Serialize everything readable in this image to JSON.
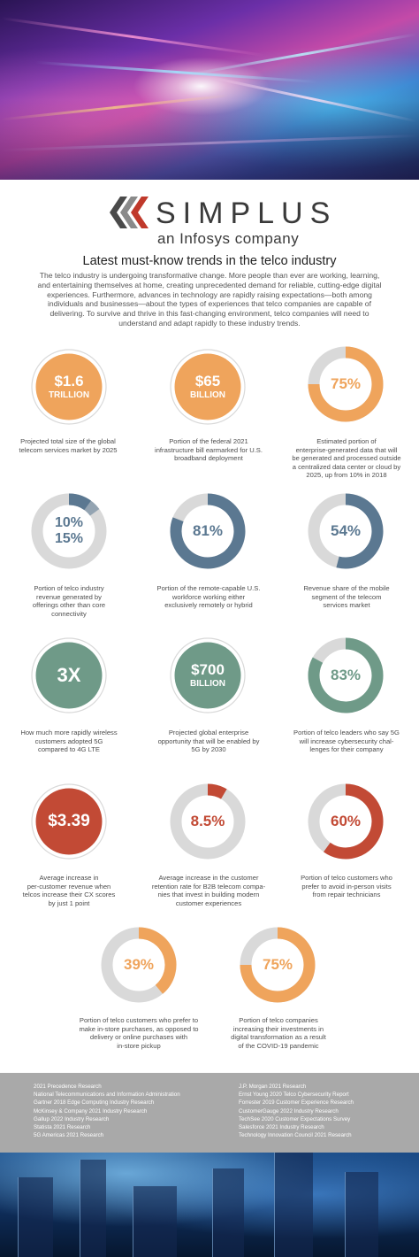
{
  "brand": {
    "name": "SIMPLUS",
    "tagline": "an Infosys company",
    "colors": {
      "dark": "#4a4a4a",
      "red": "#c0392b",
      "gray": "#8a8a8a"
    }
  },
  "headline": "Latest must-know trends in the telco industry",
  "intro": "The telco industry is undergoing transformative change. More people than ever are working, learning, and entertaining themselves at home, creating unprecedented demand for reliable, cutting-edge digital experiences. Furthermore, advances in technology are rapidly raising expectations—both among individuals and businesses—about the types of experiences that telco companies are capable of delivering. To survive and thrive in this fast-changing environment, telco companies will need to understand and adapt rapidly to these industry trends.",
  "colors": {
    "orange": "#efa45c",
    "slate": "#5b7891",
    "green": "#6f9a88",
    "red": "#c24a35",
    "ring_track": "#d9d9d9"
  },
  "stats": [
    {
      "id": "s1",
      "style": "solid",
      "color": "orange",
      "value": 1.0,
      "line1": "$1.6",
      "line2": "TRILLION",
      "caption": [
        "Projected total size of the global",
        "telecom services market by 2025"
      ]
    },
    {
      "id": "s2",
      "style": "solid",
      "color": "orange",
      "value": 1.0,
      "line1": "$65",
      "line2": "BILLION",
      "caption": [
        "Portion of the federal 2021",
        "infrastructure bill earmarked for U.S.",
        "broadband deployment"
      ]
    },
    {
      "id": "s3",
      "style": "ring",
      "color": "orange",
      "value": 0.75,
      "line1": "75%",
      "line2": "",
      "caption": [
        "Estimated portion of",
        "enterprise-generated data that will",
        "be generated and processed outside",
        "a centralized data center or cloud by",
        "2025, up from 10% in 2018"
      ]
    },
    {
      "id": "s4",
      "style": "ring",
      "color": "slate",
      "value": 0.1,
      "value2": 0.15,
      "line1": "10%",
      "line2": "15%",
      "caption": [
        "Portion of telco industry",
        "revenue generated by",
        "offerings other than core",
        "connectivity"
      ]
    },
    {
      "id": "s5",
      "style": "ring",
      "color": "slate",
      "value": 0.81,
      "line1": "81%",
      "line2": "",
      "caption": [
        "Portion of the remote-capable U.S.",
        "workforce working either",
        "exclusively remotely or hybrid"
      ]
    },
    {
      "id": "s6",
      "style": "ring",
      "color": "slate",
      "value": 0.54,
      "line1": "54%",
      "line2": "",
      "caption": [
        "Revenue share of the mobile",
        "segment of the telecom",
        "services market"
      ]
    },
    {
      "id": "s7",
      "style": "solid",
      "color": "green",
      "value": 1.0,
      "line1": "3X",
      "line2": "",
      "caption": [
        "How much more rapidly wireless",
        "customers adopted 5G",
        "compared to 4G LTE"
      ]
    },
    {
      "id": "s8",
      "style": "solid",
      "color": "green",
      "value": 1.0,
      "line1": "$700",
      "line2": "BILLION",
      "caption": [
        "Projected global enterprise",
        "opportunity that will be enabled by",
        "5G by 2030"
      ]
    },
    {
      "id": "s9",
      "style": "ring",
      "color": "green",
      "value": 0.83,
      "line1": "83%",
      "line2": "",
      "caption": [
        "Portion of telco leaders who say 5G",
        "will increase cybersecurity chal-",
        "lenges for their company"
      ]
    },
    {
      "id": "s10",
      "style": "solid",
      "color": "red",
      "value": 1.0,
      "line1": "$3.39",
      "line2": "",
      "caption": [
        "Average increase in",
        "per-customer revenue when",
        "telcos increase their CX scores",
        "by just 1 point"
      ]
    },
    {
      "id": "s11",
      "style": "ring",
      "color": "red",
      "value": 0.085,
      "line1": "8.5%",
      "line2": "",
      "caption": [
        "Average increase in the customer",
        "retention rate for B2B telecom compa-",
        "nies that invest in building modern",
        "customer experiences"
      ]
    },
    {
      "id": "s12",
      "style": "ring",
      "color": "red",
      "value": 0.6,
      "line1": "60%",
      "line2": "",
      "caption": [
        "Portion of telco customers who",
        "prefer to avoid in-person visits",
        "from repair technicians"
      ]
    },
    {
      "id": "s13",
      "style": "ring",
      "color": "orange",
      "value": 0.39,
      "line1": "39%",
      "line2": "",
      "caption": [
        "Portion of telco customers who prefer to",
        "make in-store purchases, as opposed to",
        "delivery or online purchases with",
        "in-store pickup"
      ]
    },
    {
      "id": "s14",
      "style": "ring",
      "color": "orange",
      "value": 0.75,
      "line1": "75%",
      "line2": "",
      "caption": [
        "Portion of telco companies",
        "increasing their investments in",
        "digital transformation as a result",
        "of the COVID-19 pandemic"
      ]
    }
  ],
  "sources": {
    "left": [
      "2021 Precedence Research",
      "National Telecommunications and Information Administration",
      "Gartner 2018 Edge Computing Industry Research",
      "McKinsey & Company 2021 Industry Research",
      "Gallup 2022 Industry Research",
      "Statista 2021 Research",
      "5G Americas 2021 Research"
    ],
    "right": [
      "J.P. Morgan 2021 Research",
      "Ernst Young 2020 Telco Cybersecurity Report",
      "Forrester 2019 Customer Experience Research",
      "CustomerGauge 2022 Industry Research",
      "TechSee 2020 Customer Expectations Survey",
      "Salesforce 2021 Industry Research",
      "Technology Innovation Council 2021 Research"
    ]
  }
}
